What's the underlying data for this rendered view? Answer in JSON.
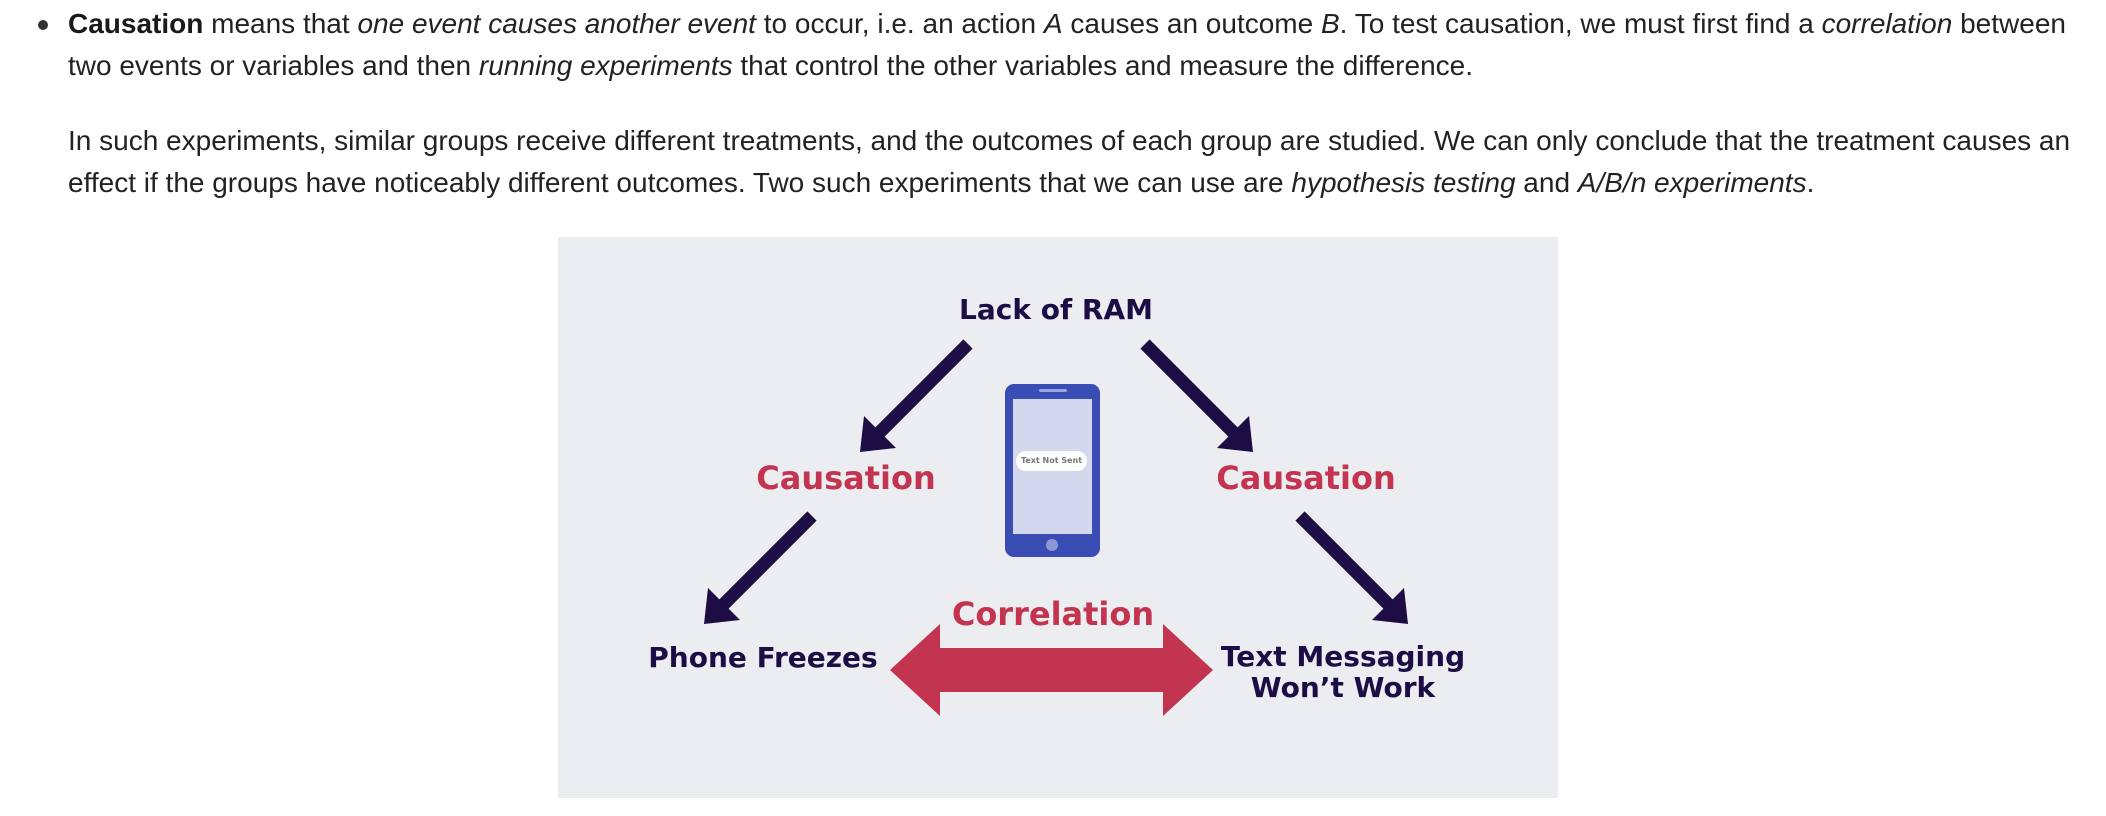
{
  "paragraph1": {
    "seg1": "Causation",
    "seg2": " means that ",
    "seg3": "one event causes another event",
    "seg4": " to occur, i.e. an action ",
    "seg5": "A",
    "seg6": " causes an outcome ",
    "seg7": "B",
    "seg8": ". To test causation, we must first find a ",
    "seg9": "correlation",
    "seg10": " between two events or variables and then ",
    "seg11": "running experiments",
    "seg12": " that control the other variables and measure the difference."
  },
  "paragraph2": {
    "seg1": "In such experiments, similar groups receive different treatments, and the outcomes of each group are studied. We can only conclude that the treatment causes an effect if the groups have noticeably different outcomes. Two such experiments that we can use are ",
    "seg2": "hypothesis testing",
    "seg3": " and ",
    "seg4": "A/B/n experiments",
    "seg5": "."
  },
  "diagram": {
    "top_node": "Lack of RAM",
    "left_edge_label": "Causation",
    "right_edge_label": "Causation",
    "bottom_left_node": "Phone Freezes",
    "bottom_right_node_line1": "Text Messaging",
    "bottom_right_node_line2": "Won’t Work",
    "correlation_label": "Correlation",
    "phone_message": "Text Not Sent",
    "colors": {
      "background": "#ecedf0",
      "node_text": "#1c0d45",
      "arrow_dark": "#1c0d45",
      "accent_red": "#c2344f",
      "phone_body": "#3a4db5",
      "phone_screen": "#d4d8ef"
    }
  }
}
